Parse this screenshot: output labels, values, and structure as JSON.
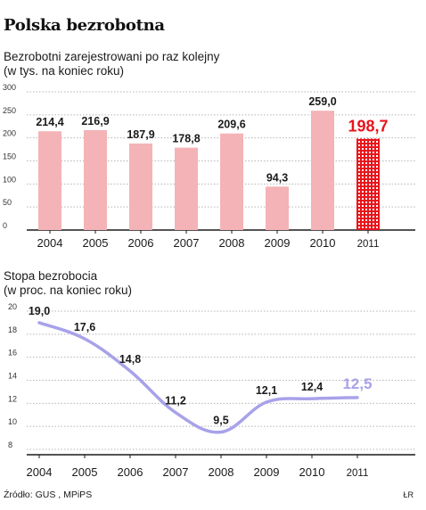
{
  "title": "Polska bezrobotna",
  "source": "Źródło: GUS , MPiPS",
  "author": "ŁR",
  "colors": {
    "bar": "#f4b3b6",
    "bar_highlight": "#e8141b",
    "line": "#a8a2ea",
    "grid": "#b5b5b5",
    "axis": "#1a1a1a"
  },
  "chart_data": [
    {
      "type": "bar",
      "title": "Bezrobotni zarejestrowani po raz kolejny",
      "subtitle": "(w tys. na koniec roku)",
      "categories": [
        "2004",
        "2005",
        "2006",
        "2007",
        "2008",
        "2009",
        "2010",
        "2011"
      ],
      "values": [
        214.4,
        216.9,
        187.9,
        178.8,
        209.6,
        94.3,
        259.0,
        198.7
      ],
      "value_labels": [
        "214,4",
        "216,9",
        "187,9",
        "178,8",
        "209,6",
        "94,3",
        "259,0",
        "198,7"
      ],
      "highlight_index": 7,
      "ylim": [
        0,
        300
      ],
      "yticks": [
        0,
        50,
        100,
        150,
        200,
        250,
        300
      ],
      "ytick_labels": [
        "0",
        "50",
        "100",
        "150",
        "200",
        "250",
        "300"
      ],
      "grid": true
    },
    {
      "type": "line",
      "title": "Stopa bezrobocia",
      "subtitle": "(w proc. na koniec roku)",
      "categories": [
        "2004",
        "2005",
        "2006",
        "2007",
        "2008",
        "2009",
        "2010",
        "2011"
      ],
      "values": [
        19.0,
        17.6,
        14.8,
        11.2,
        9.5,
        12.1,
        12.4,
        12.5
      ],
      "value_labels": [
        "19,0",
        "17,6",
        "14,8",
        "11,2",
        "9,5",
        "12,1",
        "12,4",
        "12,5"
      ],
      "highlight_index": 7,
      "ylim": [
        8,
        20
      ],
      "yticks": [
        8,
        10,
        12,
        14,
        16,
        18,
        20
      ],
      "ytick_labels": [
        "8",
        "10",
        "12",
        "14",
        "16",
        "18",
        "20"
      ],
      "grid": true
    }
  ]
}
